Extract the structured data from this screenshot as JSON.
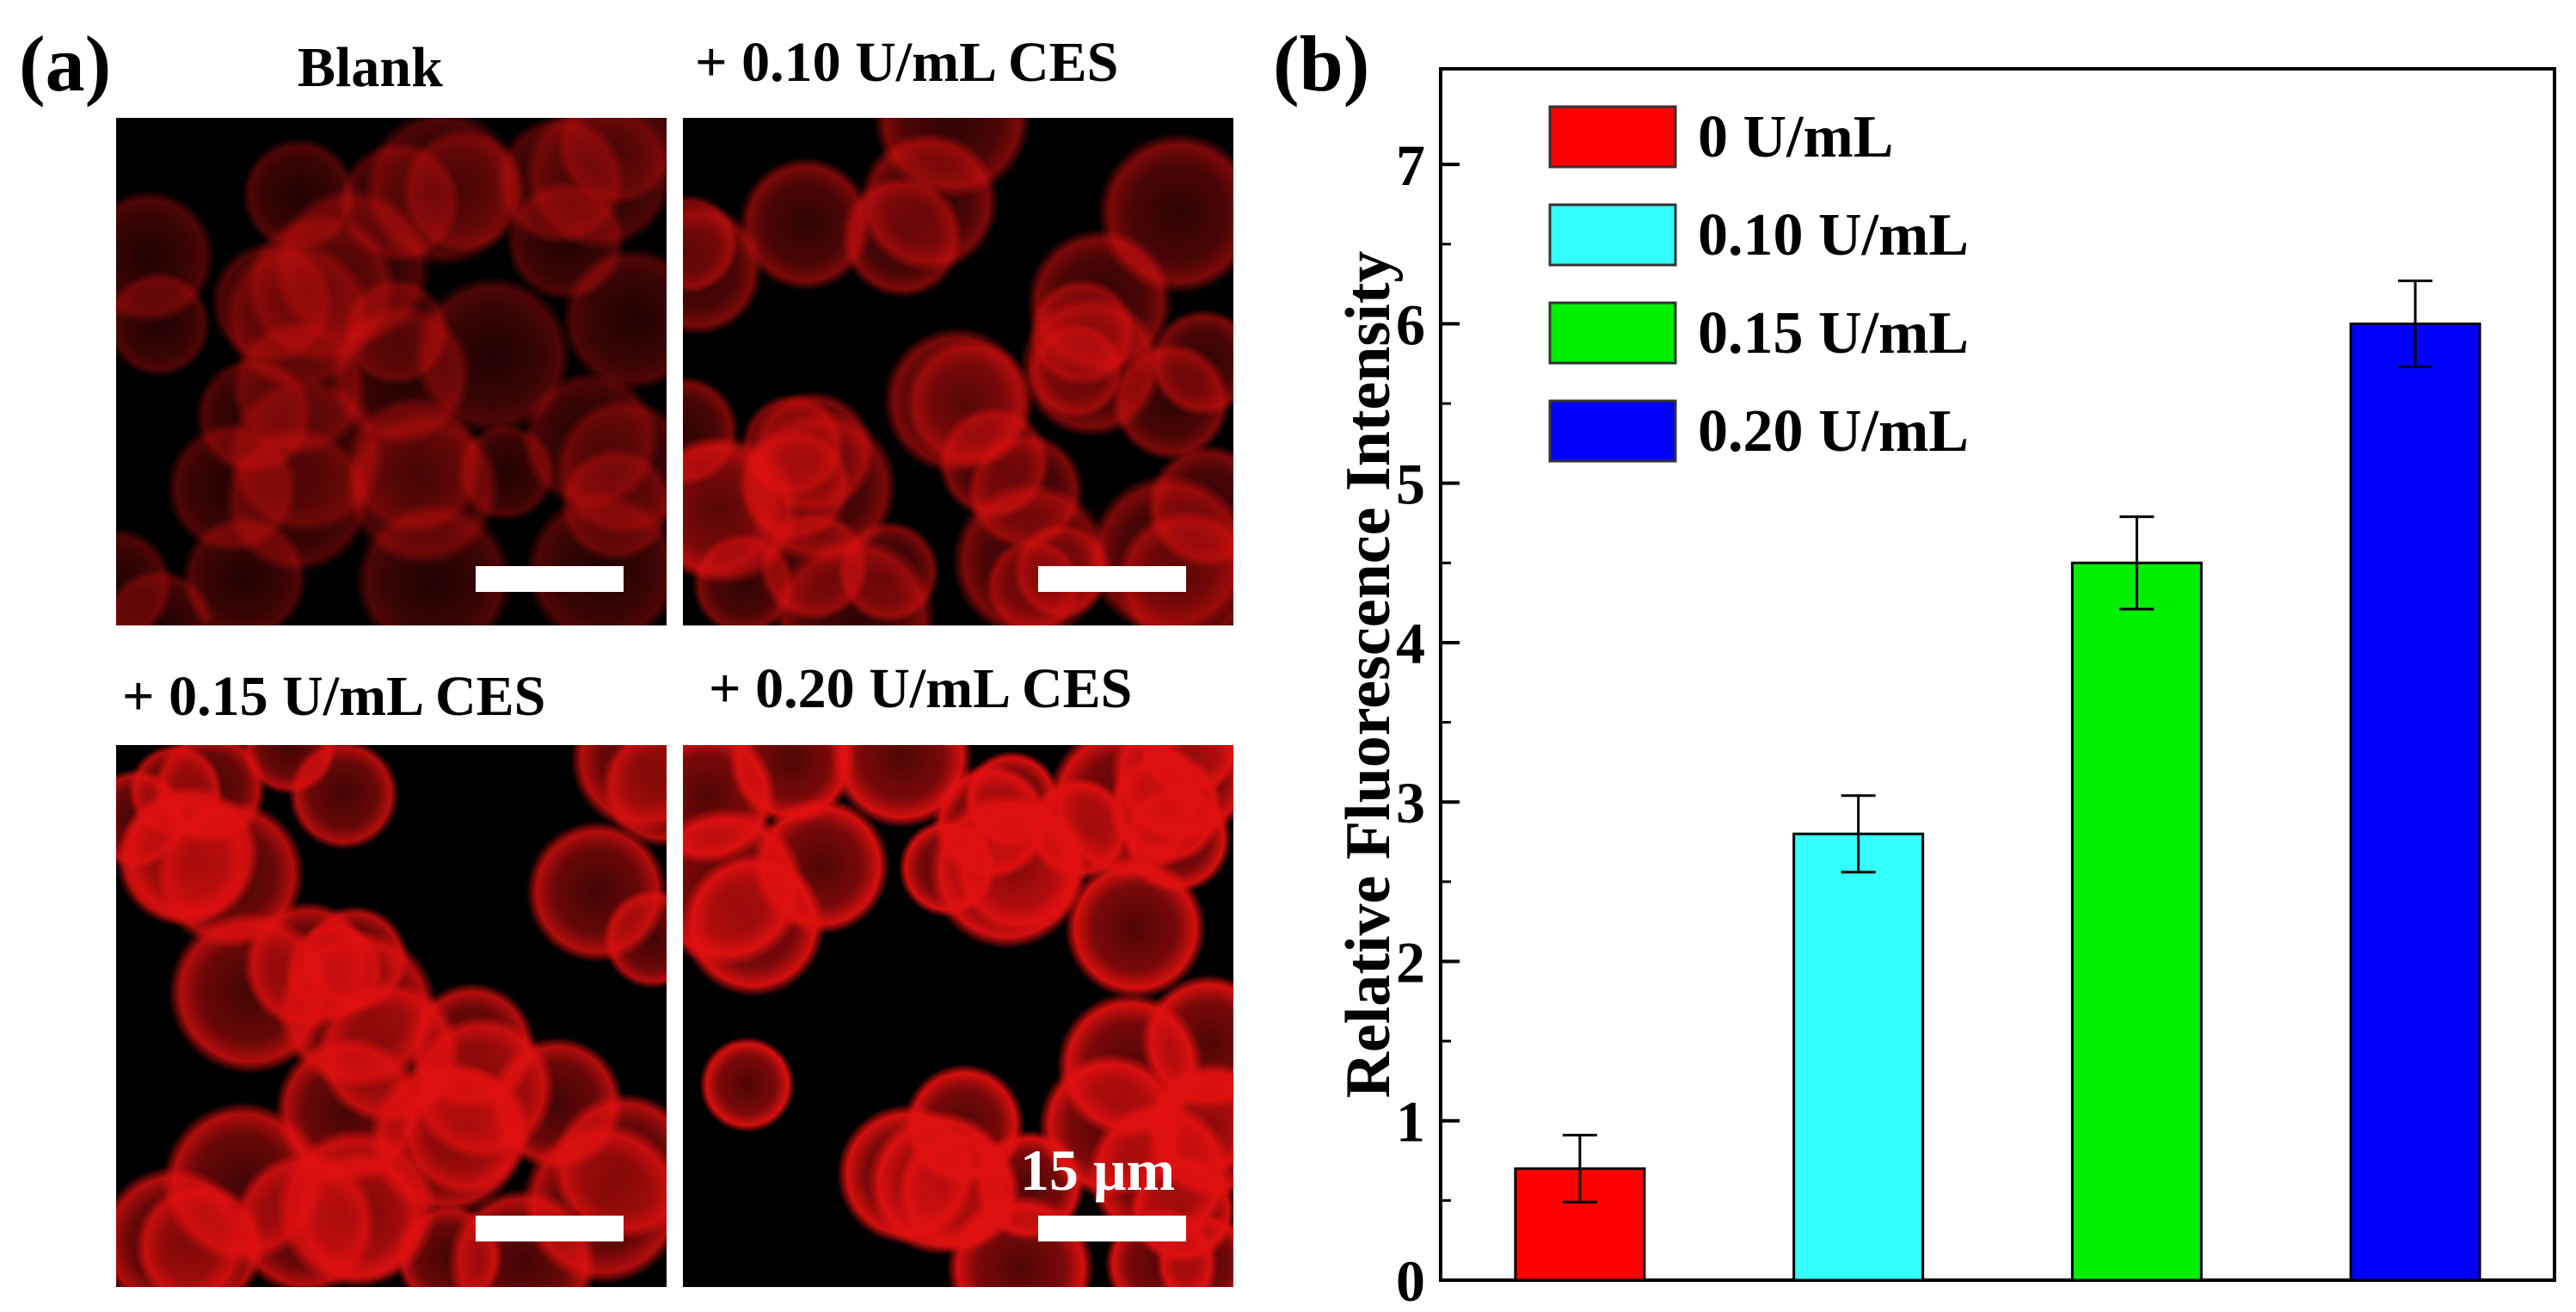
{
  "panel_a": {
    "label": "(a)",
    "images": [
      {
        "title": "Blank",
        "cells": "dim"
      },
      {
        "title": "+ 0.10 U/mL CES",
        "cells": "medium"
      },
      {
        "title": "+ 0.15 U/mL CES",
        "cells": "bright"
      },
      {
        "title": "+ 0.20 U/mL CES",
        "cells": "brightest"
      }
    ],
    "scale_label": "15 μm"
  },
  "panel_b": {
    "label": "(b)"
  },
  "chart_data": {
    "type": "bar",
    "title": "",
    "xlabel": "",
    "ylabel": "Relative Fluorescence Intensity",
    "ylim": [
      0,
      7.6
    ],
    "yticks": [
      0,
      1,
      2,
      3,
      4,
      5,
      6,
      7
    ],
    "categories": [
      "0 U/mL",
      "0.10 U/mL",
      "0.15 U/mL",
      "0.20 U/mL"
    ],
    "values": [
      0.7,
      2.8,
      4.5,
      6.0
    ],
    "errors": [
      0.21,
      0.24,
      0.29,
      0.27
    ],
    "colors": [
      "#ff0000",
      "#33ffff",
      "#00ee00",
      "#0000ff"
    ],
    "legend": {
      "position": "top-left",
      "entries": [
        "0 U/mL",
        "0.10 U/mL",
        "0.15 U/mL",
        "0.20 U/mL"
      ]
    }
  }
}
